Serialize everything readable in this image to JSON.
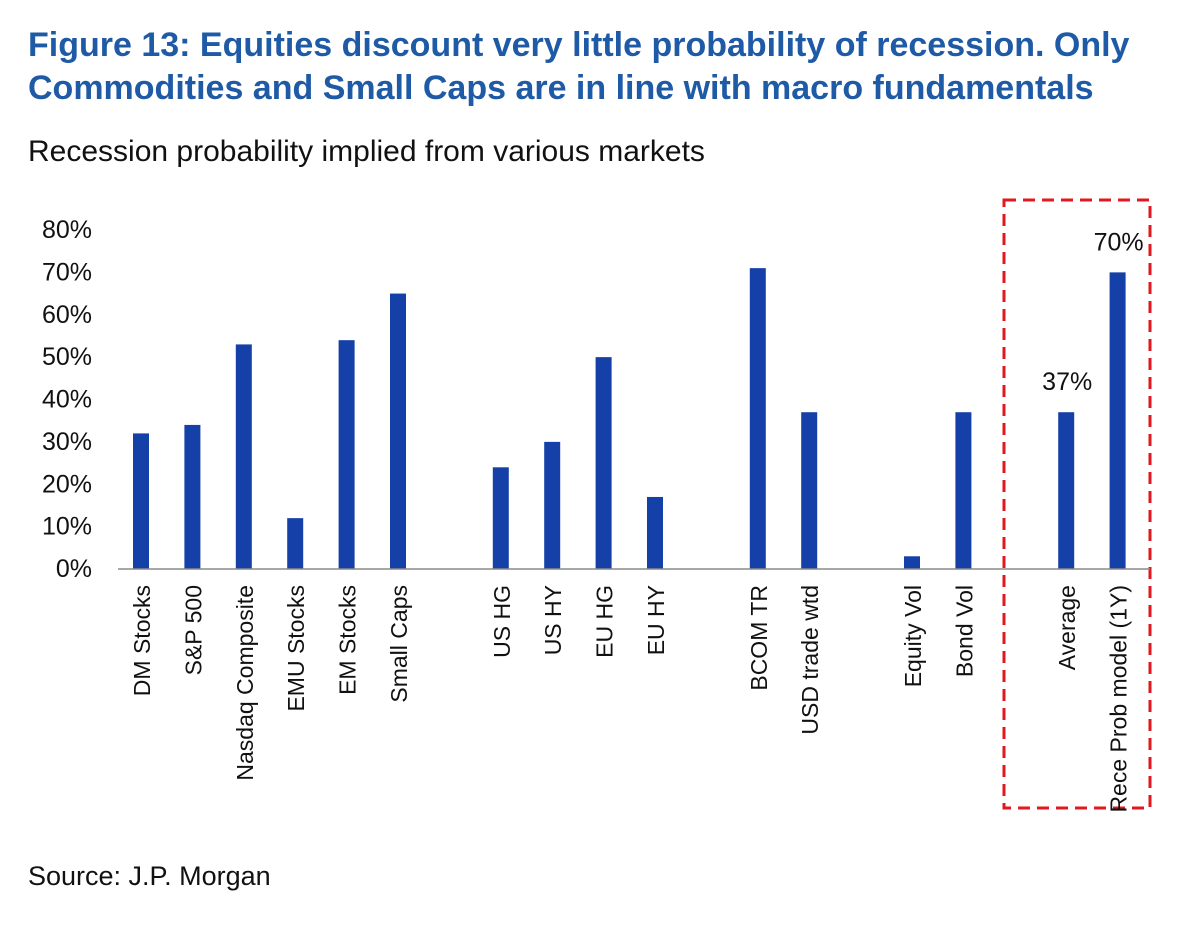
{
  "header": {
    "title": "Figure 13: Equities discount very little probability of recession. Only Commodities and Small Caps are in line with macro fundamentals",
    "subtitle": "Recession probability implied from various markets"
  },
  "footer": {
    "source": "Source: J.P. Morgan"
  },
  "colors": {
    "title": "#1f5aa6",
    "bar": "#1540a8",
    "highlight_box": "#e0191f",
    "text": "#111111"
  },
  "chart_data": {
    "type": "bar",
    "title": "Recession probability implied from various markets",
    "xlabel": "",
    "ylabel": "",
    "ylim": [
      0,
      0.8
    ],
    "y_ticks": [
      "0%",
      "10%",
      "20%",
      "30%",
      "40%",
      "50%",
      "60%",
      "70%",
      "80%"
    ],
    "grid": false,
    "legend": "none",
    "categories": [
      "DM Stocks",
      "S&P 500",
      "Nasdaq Composite",
      "EMU Stocks",
      "EM Stocks",
      "Small Caps",
      "US HG",
      "US HY",
      "EU HG",
      "EU HY",
      "BCOM TR",
      "USD trade wtd",
      "Equity Vol",
      "Bond Vol",
      "Average",
      "Rece Prob model (1Y)"
    ],
    "groups": [
      6,
      4,
      2,
      2,
      2
    ],
    "values": [
      0.32,
      0.34,
      0.53,
      0.12,
      0.54,
      0.65,
      0.24,
      0.3,
      0.5,
      0.17,
      0.71,
      0.37,
      0.03,
      0.37,
      0.37,
      0.7
    ],
    "data_labels": [
      {
        "category": "Average",
        "text": "37%"
      },
      {
        "category": "Rece Prob model (1Y)",
        "text": "70%"
      }
    ],
    "highlighted_categories": [
      "Average",
      "Rece Prob model (1Y)"
    ]
  }
}
